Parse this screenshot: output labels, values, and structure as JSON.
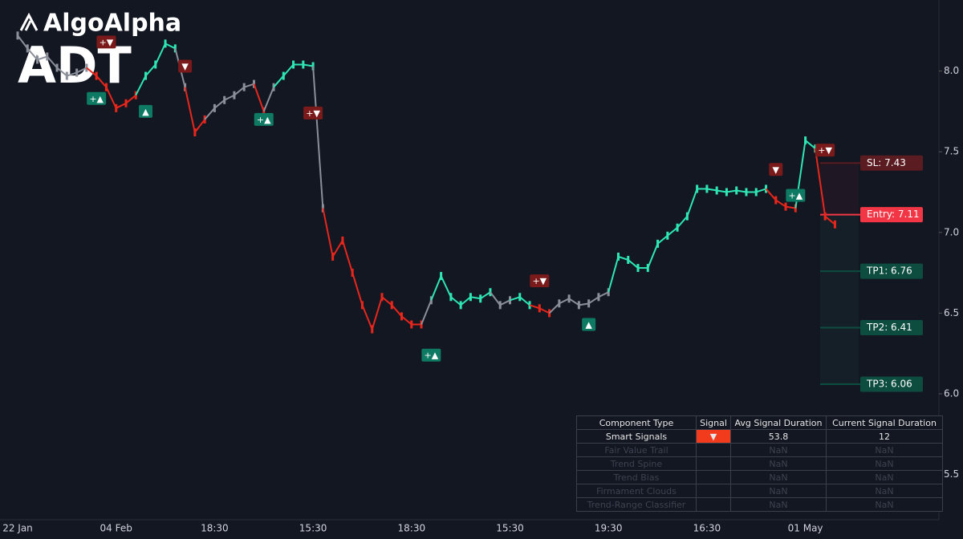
{
  "chart_data": {
    "type": "line",
    "brand": "AlgoAlpha",
    "title": "ADT",
    "categories": [
      "22 Jan",
      null,
      null,
      null,
      null,
      null,
      null,
      null,
      null,
      null,
      "04 Feb",
      null,
      null,
      null,
      null,
      null,
      null,
      null,
      null,
      null,
      "18:30",
      null,
      null,
      null,
      null,
      null,
      null,
      null,
      null,
      null,
      "15:30",
      null,
      null,
      null,
      null,
      null,
      null,
      null,
      null,
      null,
      "18:30",
      null,
      null,
      null,
      null,
      null,
      null,
      null,
      null,
      null,
      "15:30",
      null,
      null,
      null,
      null,
      null,
      null,
      null,
      null,
      null,
      "19:30",
      null,
      null,
      null,
      null,
      null,
      null,
      null,
      null,
      null,
      "16:30",
      null,
      null,
      null,
      null,
      null,
      null,
      null,
      null,
      null,
      "01 May",
      null,
      null,
      null
    ],
    "values": [
      8.22,
      8.14,
      8.07,
      8.09,
      8.02,
      7.97,
      7.99,
      8.02,
      7.97,
      7.9,
      7.77,
      7.8,
      7.85,
      7.97,
      8.04,
      8.17,
      8.14,
      7.9,
      7.62,
      7.7,
      7.77,
      7.82,
      7.85,
      7.9,
      7.92,
      7.75,
      7.9,
      7.97,
      8.04,
      8.04,
      8.03,
      7.15,
      6.85,
      6.95,
      6.75,
      6.55,
      6.4,
      6.6,
      6.55,
      6.48,
      6.43,
      6.43,
      6.58,
      6.73,
      6.6,
      6.55,
      6.6,
      6.59,
      6.63,
      6.55,
      6.58,
      6.6,
      6.55,
      6.53,
      6.5,
      6.56,
      6.59,
      6.55,
      6.56,
      6.6,
      6.63,
      6.85,
      6.83,
      6.78,
      6.78,
      6.93,
      6.98,
      7.03,
      7.1,
      7.27,
      7.27,
      7.26,
      7.25,
      7.26,
      7.25,
      7.25,
      7.27,
      7.2,
      7.16,
      7.15,
      7.57,
      7.52,
      7.1,
      7.05
    ],
    "point_colors": [
      "#8b8f99",
      "#8b8f99",
      "#8b8f99",
      "#8b8f99",
      "#8b8f99",
      "#8b8f99",
      "#8b8f99",
      "#8b8f99",
      "#e8261c",
      "#e8261c",
      "#e8261c",
      "#e8261c",
      "#e8261c",
      "#2ee6b4",
      "#2ee6b4",
      "#2ee6b4",
      "#2ee6b4",
      "#8b8f99",
      "#e8261c",
      "#e8261c",
      "#8b8f99",
      "#8b8f99",
      "#8b8f99",
      "#8b8f99",
      "#8b8f99",
      "#e8261c",
      "#8b8f99",
      "#2ee6b4",
      "#2ee6b4",
      "#2ee6b4",
      "#2ee6b4",
      "#8b8f99",
      "#e8261c",
      "#e8261c",
      "#e8261c",
      "#e8261c",
      "#e8261c",
      "#e8261c",
      "#e8261c",
      "#e8261c",
      "#e8261c",
      "#e8261c",
      "#8b8f99",
      "#2ee6b4",
      "#2ee6b4",
      "#2ee6b4",
      "#2ee6b4",
      "#2ee6b4",
      "#2ee6b4",
      "#8b8f99",
      "#8b8f99",
      "#2ee6b4",
      "#2ee6b4",
      "#e8261c",
      "#e8261c",
      "#8b8f99",
      "#8b8f99",
      "#8b8f99",
      "#8b8f99",
      "#8b8f99",
      "#8b8f99",
      "#2ee6b4",
      "#2ee6b4",
      "#2ee6b4",
      "#2ee6b4",
      "#2ee6b4",
      "#2ee6b4",
      "#2ee6b4",
      "#2ee6b4",
      "#2ee6b4",
      "#2ee6b4",
      "#2ee6b4",
      "#2ee6b4",
      "#2ee6b4",
      "#2ee6b4",
      "#2ee6b4",
      "#2ee6b4",
      "#e8261c",
      "#e8261c",
      "#e8261c",
      "#2ee6b4",
      "#2ee6b4",
      "#e8261c",
      "#e8261c"
    ],
    "ylim": [
      5.22,
      8.44
    ],
    "yticks": [
      {
        "value": 5.5,
        "label": "5.5"
      },
      {
        "value": 6,
        "label": "6.0"
      },
      {
        "value": 6.5,
        "label": "6.5"
      },
      {
        "value": 7,
        "label": "7.0"
      },
      {
        "value": 7.5,
        "label": "7.5"
      },
      {
        "value": 8,
        "label": "8.0"
      }
    ],
    "signals": [
      {
        "at": 9,
        "value": 8.18,
        "label": "+▼",
        "color": "#7a1a1a"
      },
      {
        "at": 8,
        "value": 7.83,
        "label": "+▲",
        "color": "#0e7a63"
      },
      {
        "at": 13,
        "value": 7.75,
        "label": "▲",
        "color": "#0e7a63"
      },
      {
        "at": 17,
        "value": 8.03,
        "label": "▼",
        "color": "#7a1a1a"
      },
      {
        "at": 25,
        "value": 7.7,
        "label": "+▲",
        "color": "#0e7a63"
      },
      {
        "at": 30,
        "value": 7.74,
        "label": "+▼",
        "color": "#7a1a1a"
      },
      {
        "at": 42,
        "value": 6.24,
        "label": "+▲",
        "color": "#0e7a63"
      },
      {
        "at": 53,
        "value": 6.7,
        "label": "+▼",
        "color": "#7a1a1a"
      },
      {
        "at": 58,
        "value": 6.43,
        "label": "▲",
        "color": "#0e7a63"
      },
      {
        "at": 77,
        "value": 7.39,
        "label": "▼",
        "color": "#7a1a1a"
      },
      {
        "at": 79,
        "value": 7.23,
        "label": "+▲",
        "color": "#0e7a63"
      },
      {
        "at": 82,
        "value": 7.51,
        "label": "+▼",
        "color": "#7a1a1a"
      }
    ],
    "levels": [
      {
        "label": "SL: 7.43",
        "value": 7.43,
        "color": "#5a1c20"
      },
      {
        "label": "Entry: 7.11",
        "value": 7.11,
        "color": "#f23645"
      },
      {
        "label": "TP1: 6.76",
        "value": 6.76,
        "color": "#0d4d40"
      },
      {
        "label": "TP2: 6.41",
        "value": 6.41,
        "color": "#0d4d40"
      },
      {
        "label": "TP3: 6.06",
        "value": 6.06,
        "color": "#0d4d40"
      }
    ]
  },
  "table": {
    "header": [
      "Component Type",
      "Signal",
      "Avg Signal Duration",
      "Current Signal Duration"
    ],
    "rows": [
      [
        "Smart Signals",
        "▼",
        "53.8",
        "12"
      ],
      [
        "Fair Value Trail",
        "",
        "NaN",
        "NaN"
      ],
      [
        "Trend Spine",
        "",
        "NaN",
        "NaN"
      ],
      [
        "Trend Bias",
        "",
        "NaN",
        "NaN"
      ],
      [
        "Firmament Clouds",
        "",
        "NaN",
        "NaN"
      ],
      [
        "Trend-Range Classifier",
        "",
        "NaN",
        "NaN"
      ]
    ]
  }
}
